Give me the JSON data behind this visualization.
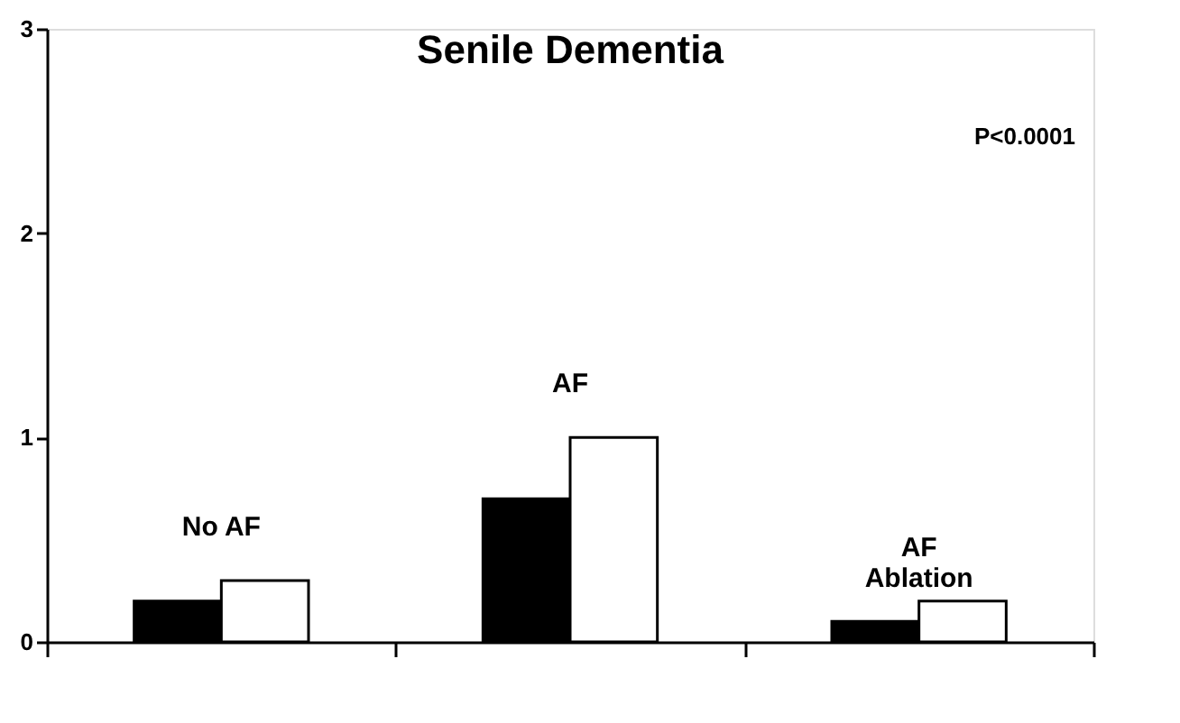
{
  "chart_data": {
    "type": "bar",
    "title": "Senile Dementia",
    "categories": [
      "No AF",
      "AF",
      "AF\nAblation"
    ],
    "series": [
      {
        "color": "#000000",
        "values": [
          0.2,
          0.7,
          0.1
        ]
      },
      {
        "color": "#ffffff",
        "values": [
          0.3,
          1.0,
          0.2
        ]
      }
    ],
    "ylim": [
      0,
      3
    ],
    "yticks": [
      0,
      1,
      2,
      3
    ],
    "grid": false,
    "legend": false,
    "annotations": [
      "P<0.0001"
    ]
  }
}
